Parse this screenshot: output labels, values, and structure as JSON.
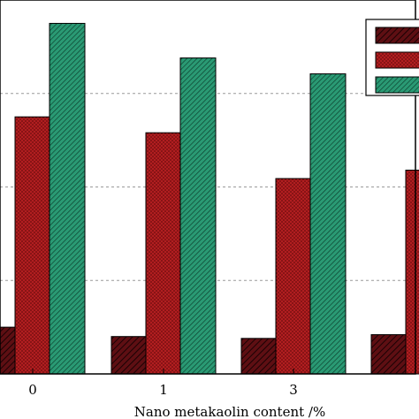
{
  "chart_data": {
    "type": "bar",
    "categories": [
      "0",
      "1",
      "3",
      ""
    ],
    "series": [
      {
        "values": [
          0.5,
          0.4,
          0.38,
          0.42
        ],
        "color": "#5e0f13",
        "pattern": "diagonal-hatch"
      },
      {
        "values": [
          2.75,
          2.58,
          2.09,
          2.18
        ],
        "color": "#b11e20",
        "pattern": "crosshatch"
      },
      {
        "values": [
          3.75,
          3.38,
          3.21,
          null
        ],
        "color": "#1f8a66",
        "pattern": "diagonal-hatch-fine"
      }
    ],
    "xlabel": "Nano metakaolin content  /%",
    "ylim": [
      0,
      4
    ],
    "grid": "horizontal dashed",
    "legend_position": "top-right"
  }
}
